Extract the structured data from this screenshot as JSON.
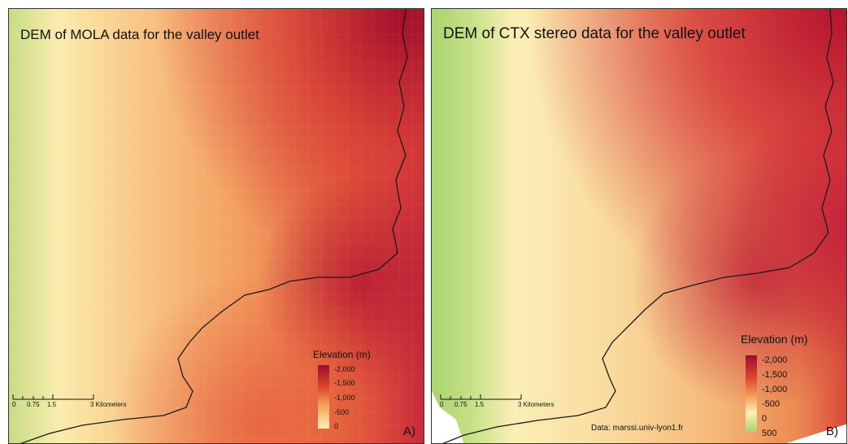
{
  "panels": {
    "a": {
      "title": "DEM of MOLA data for the valley outlet",
      "letter": "A)",
      "legend": {
        "title": "Elevation (m)",
        "labels": [
          "-2,000",
          "-1,500",
          "-1,000",
          "-500",
          "0"
        ]
      },
      "scale": {
        "ticks": [
          "0",
          "0.75",
          "1.5",
          "3 Kilometers"
        ]
      }
    },
    "b": {
      "title": "DEM of CTX stereo data for the valley outlet",
      "letter": "B)",
      "legend": {
        "title": "Elevation (m)",
        "labels": [
          "-2,000",
          "-1,500",
          "-1,000",
          "-500",
          "0",
          "500"
        ]
      },
      "scale": {
        "ticks": [
          "0",
          "0.75",
          "1.5",
          "3 Kilometers"
        ]
      },
      "credit": "Data: marssi.univ-lyon1.fr"
    }
  },
  "colors": {
    "low": "#9a0f2a",
    "mid_low": "#e0462f",
    "mid": "#f2a35a",
    "high": "#fde7a6",
    "top": "#a9d46f"
  }
}
